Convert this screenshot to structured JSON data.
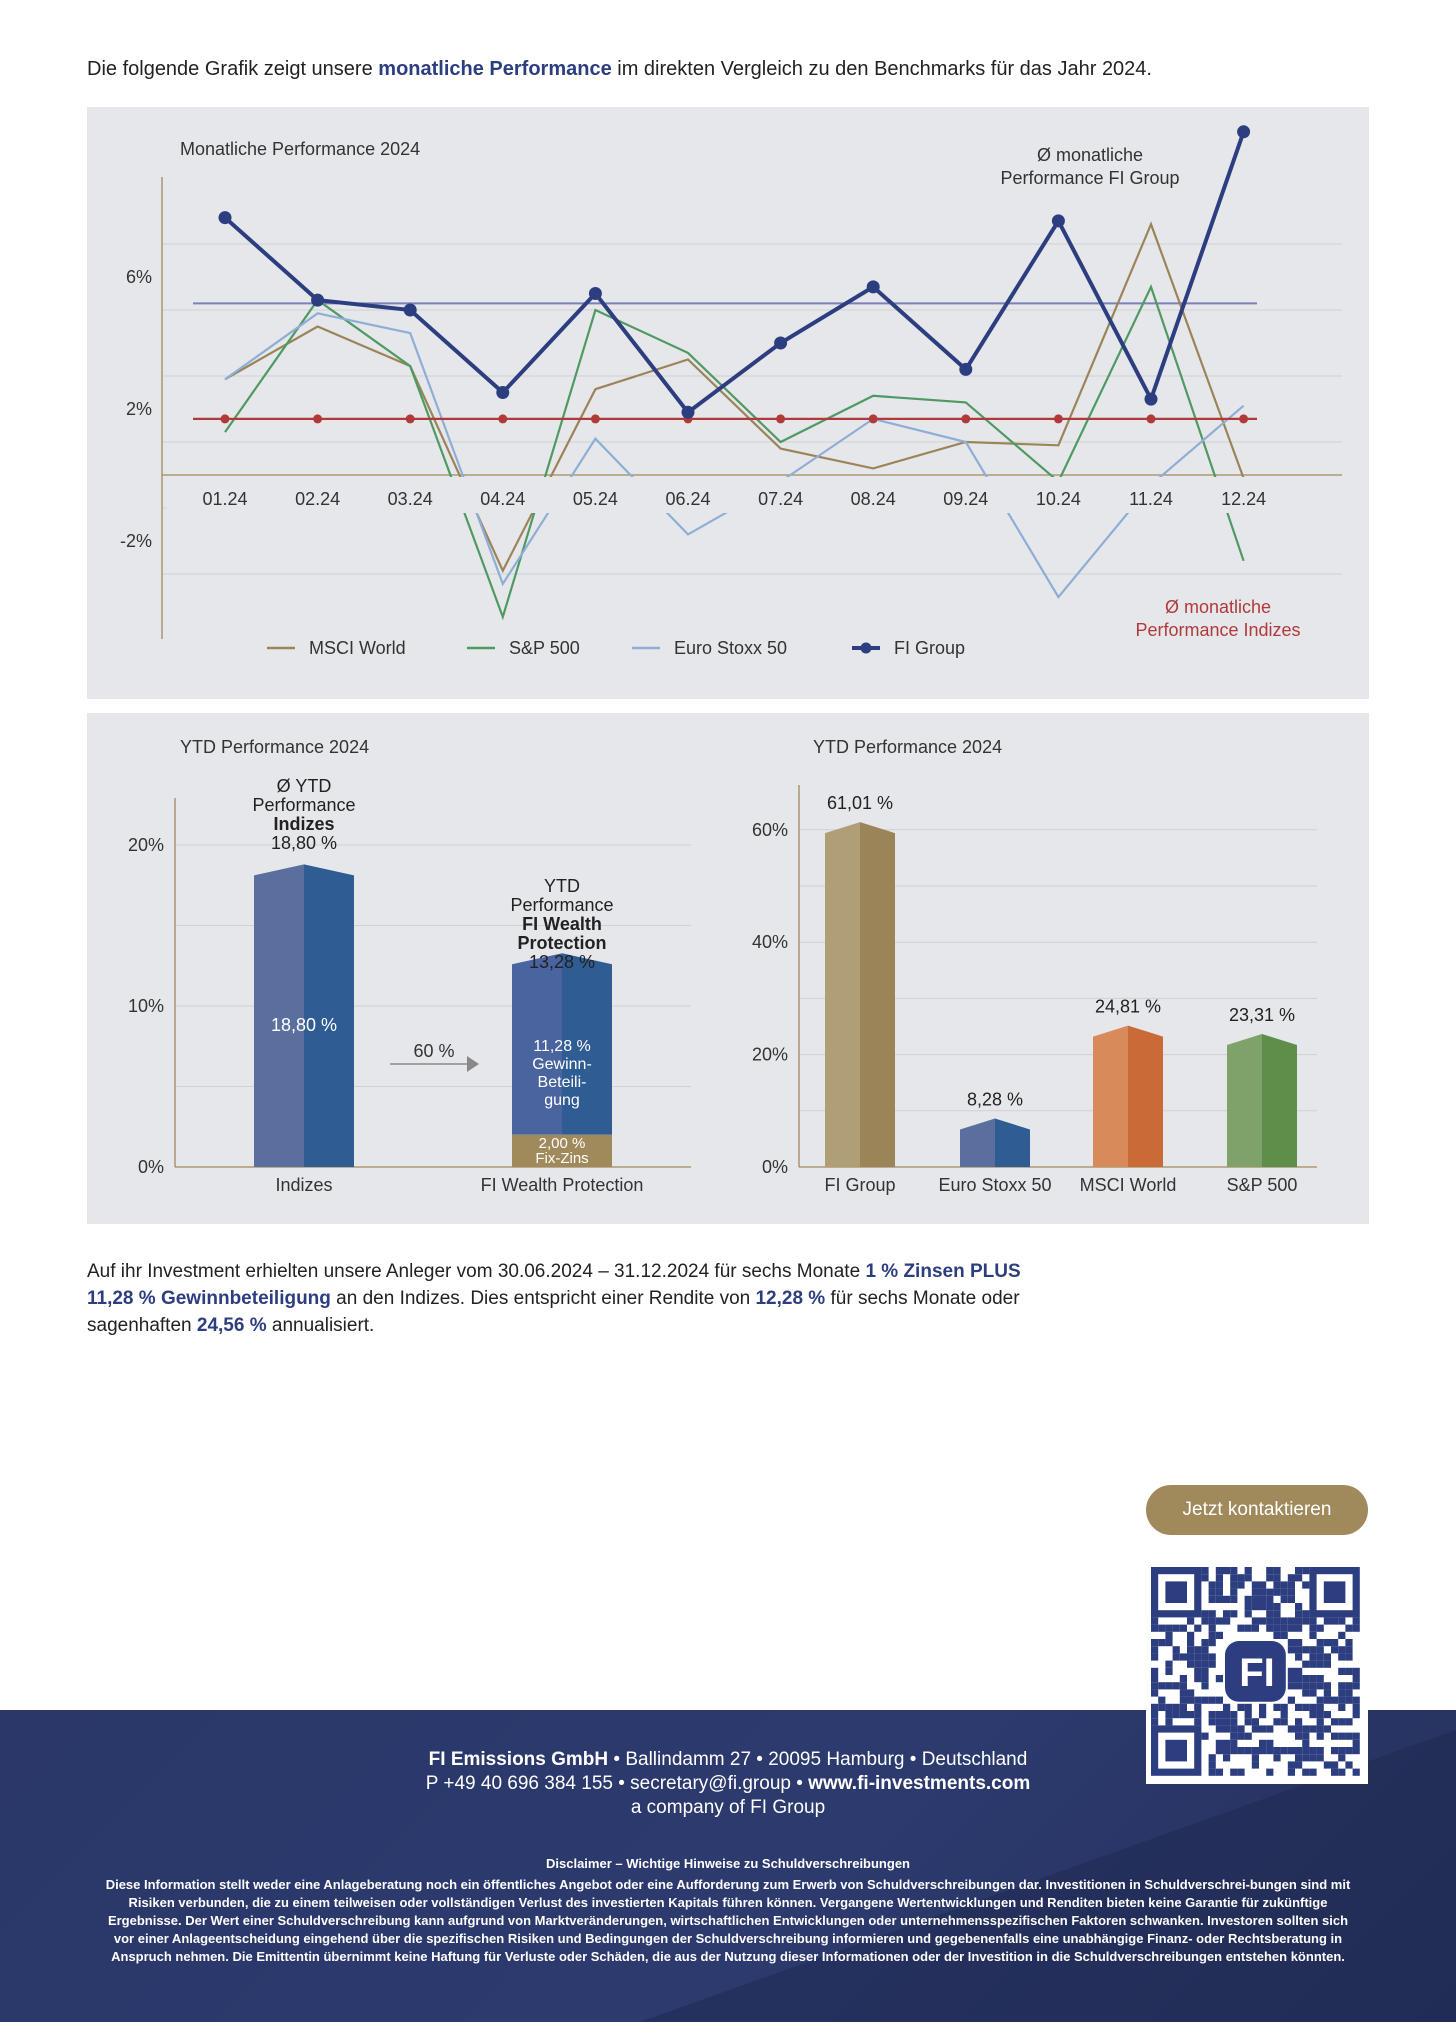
{
  "intro": {
    "text1": "Die folgende Grafik zeigt unsere ",
    "highlight": "monatliche Performance",
    "text2": " im direkten Vergleich zu den Benchmarks für das Jahr 2024."
  },
  "colors": {
    "msci": "#9c8459",
    "sp500": "#4f9a62",
    "eurostoxx": "#8eaed5",
    "fi": "#2c3e7f",
    "avg_fi": "#7b80b8",
    "avg_idx": "#b03a3a",
    "accent": "#a08a5c"
  },
  "chart_data": [
    {
      "type": "line",
      "title": "Monatliche Performance 2024",
      "x": [
        "01.24",
        "02.24",
        "03.24",
        "04.24",
        "05.24",
        "06.24",
        "07.24",
        "08.24",
        "09.24",
        "10.24",
        "11.24",
        "12.24"
      ],
      "yticks": [
        "6%",
        "2%",
        "-2%"
      ],
      "ylim": [
        -5,
        9
      ],
      "series": [
        {
          "name": "MSCI World",
          "color_key": "msci",
          "values": [
            2.9,
            4.5,
            3.3,
            -2.9,
            2.6,
            3.5,
            0.8,
            0.2,
            1.0,
            0.9,
            7.6,
            -0.1
          ]
        },
        {
          "name": "S&P 500",
          "color_key": "sp500",
          "values": [
            1.3,
            5.3,
            3.3,
            -4.3,
            5.0,
            3.7,
            1.0,
            2.4,
            2.2,
            -0.2,
            5.7,
            -2.6
          ]
        },
        {
          "name": "Euro Stoxx 50",
          "color_key": "eurostoxx",
          "values": [
            2.9,
            4.9,
            4.3,
            -3.3,
            1.1,
            -1.8,
            -0.2,
            1.7,
            1.0,
            -3.7,
            -0.3,
            2.1
          ]
        },
        {
          "name": "FI Group",
          "color_key": "fi",
          "values": [
            7.8,
            5.3,
            5.0,
            2.5,
            5.5,
            1.9,
            4.0,
            5.7,
            3.2,
            7.7,
            2.3,
            10.4
          ]
        }
      ],
      "avg_fi": {
        "label_line1": "Ø monatliche",
        "label_line2": "Performance FI Group",
        "value": 5.2
      },
      "avg_indices": {
        "label_line1": "Ø monatliche",
        "label_line2": "Performance Indizes",
        "value": 1.7
      },
      "legend_position": "bottom"
    },
    {
      "type": "bar",
      "title": "YTD Performance 2024",
      "categories": [
        "Indizes",
        "FI Wealth Protection"
      ],
      "ylim": [
        0,
        23
      ],
      "yticks": [
        "20%",
        "10%",
        "0%"
      ],
      "bars": [
        {
          "category": "Indizes",
          "value": 18.8,
          "inner_label": "18,80 %",
          "top_label": [
            "Ø YTD",
            "Performance",
            "Indizes",
            "18,80 %"
          ]
        },
        {
          "category": "FI Wealth Protection",
          "value": 13.28,
          "top_label": [
            "YTD",
            "Performance",
            "FI Wealth",
            "Protection",
            "13,28 %"
          ],
          "segments": [
            {
              "value": 2.0,
              "label": [
                "2,00 %",
                "Fix-Zins"
              ]
            },
            {
              "value": 11.28,
              "label": [
                "11,28 %",
                "Gewinn-",
                "Beteili-",
                "gung"
              ]
            }
          ]
        }
      ],
      "arrow_label": "60 %"
    },
    {
      "type": "bar",
      "title": "YTD Performance 2024",
      "categories": [
        "FI Group",
        "Euro Stoxx 50",
        "MSCI World",
        "S&P 500"
      ],
      "values": [
        61.01,
        8.28,
        24.81,
        23.31
      ],
      "value_labels": [
        "61,01 %",
        "8,28 %",
        "24,81 %",
        "23,31 %"
      ],
      "ylim": [
        0,
        66
      ],
      "yticks": [
        "60%",
        "40%",
        "20%",
        "0%"
      ]
    }
  ],
  "body": {
    "p1": "Auf ihr Investment erhielten unsere Anleger vom 30.06.2024 – 31.12.2024 für sechs Monate ",
    "b1": "1 % Zinsen PLUS",
    "b2": "11,28 % Gewinnbeteiligung",
    "p2": " an den Indizes. Dies entspricht einer Rendite von ",
    "b3": "12,28 %",
    "p3": " für sechs Monate oder",
    "p4": "sagenhaften ",
    "b4": "24,56 %",
    "p5": " annualisiert."
  },
  "cta": {
    "label": "Jetzt kontaktieren"
  },
  "qr": {
    "logo": "FI"
  },
  "footer": {
    "company": "FI Emissions GmbH",
    "address": " • Ballindamm 27 • 20095 Hamburg • Deutschland",
    "phone": "P +49 40 696 384 155 • secretary@fi.group • ",
    "web": "www.fi-investments.com",
    "group": "a company of FI Group",
    "disclaimer_title": "Disclaimer – Wichtige Hinweise zu Schuldverschreibungen",
    "disclaimer": "Diese Information stellt weder eine Anlageberatung noch ein öffentliches Angebot oder eine Aufforderung zum Erwerb von Schuldverschreibungen dar. Investitionen in Schuldverschrei-bungen sind mit Risiken verbunden, die zu einem teilweisen oder vollständigen Verlust des investierten Kapitals führen können. Vergangene Wertentwicklungen und Renditen bieten keine Garantie für zukünftige Ergebnisse. Der Wert einer Schuldverschreibung kann aufgrund von Marktveränderungen, wirtschaftlichen Entwicklungen oder unternehmensspezifischen Faktoren schwanken. Investoren sollten sich vor einer Anlageentscheidung eingehend über die spezifischen Risiken und Bedingungen der Schuldverschreibung informieren und gegebenenfalls eine unabhängige Finanz- oder Rechtsberatung in Anspruch nehmen. Die Emittentin übernimmt keine Haftung für Verluste oder Schäden, die aus der Nutzung dieser Informationen oder der Investition in die Schuldverschreibungen entstehen könnten."
  }
}
